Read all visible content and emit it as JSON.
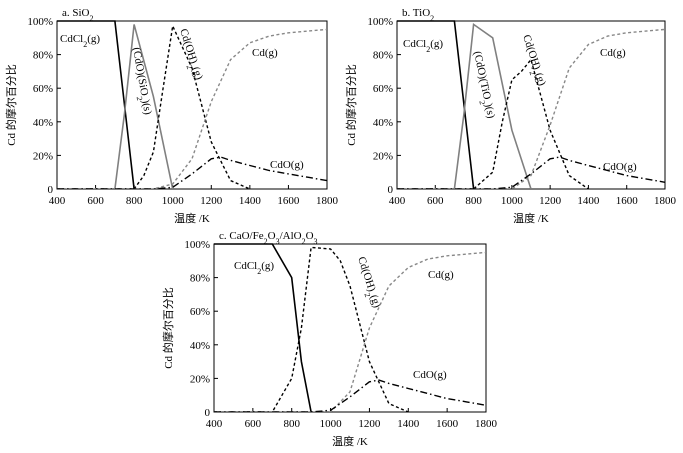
{
  "figure": {
    "background": "#ffffff"
  },
  "chart_data": [
    {
      "type": "line",
      "panel_label": "a. SiO₂",
      "xlabel": "温度 /K",
      "ylabel": "Cd 的摩尔百分比",
      "xlim": [
        400,
        1800
      ],
      "ylim": [
        0,
        100
      ],
      "xticks": [
        "400",
        "600",
        "800",
        "1000",
        "1200",
        "1400",
        "1600",
        "1800"
      ],
      "yticks": [
        "0",
        "20%",
        "40%",
        "60%",
        "80%",
        "100%"
      ],
      "series": [
        {
          "name": "CdCl₂(g)",
          "color": "#000000",
          "dash": "solid",
          "x": [
            400,
            600,
            700,
            750,
            800
          ],
          "y": [
            100,
            100,
            100,
            50,
            0
          ]
        },
        {
          "name": "(CdO)(SiO₂)(s)",
          "color": "#808080",
          "dash": "solid",
          "x": [
            400,
            700,
            750,
            800,
            900,
            1000
          ],
          "y": [
            0,
            0,
            45,
            98,
            55,
            0
          ]
        },
        {
          "name": "Cd(OH)₂(g)",
          "color": "#000000",
          "dash": "dotted",
          "x": [
            400,
            800,
            850,
            900,
            950,
            1000,
            1100,
            1200,
            1300,
            1400
          ],
          "y": [
            0,
            0,
            8,
            22,
            60,
            97,
            72,
            28,
            5,
            0
          ]
        },
        {
          "name": "Cd(g)",
          "color": "#888888",
          "dash": "dotted",
          "x": [
            400,
            900,
            1000,
            1100,
            1200,
            1300,
            1400,
            1500,
            1600,
            1700,
            1800
          ],
          "y": [
            0,
            0,
            3,
            18,
            52,
            77,
            87,
            91,
            93,
            94,
            95
          ]
        },
        {
          "name": "CdO(g)",
          "color": "#000000",
          "dash": "dashdot",
          "x": [
            400,
            900,
            1000,
            1100,
            1200,
            1250,
            1300,
            1400,
            1500,
            1600,
            1700,
            1800
          ],
          "y": [
            0,
            0,
            1,
            9,
            18,
            19,
            17,
            14,
            11,
            9,
            7,
            5
          ]
        }
      ]
    },
    {
      "type": "line",
      "panel_label": "b. TiO₂",
      "xlabel": "温度 /K",
      "ylabel": "Cd 的摩尔百分比",
      "xlim": [
        400,
        1800
      ],
      "ylim": [
        0,
        100
      ],
      "xticks": [
        "400",
        "600",
        "800",
        "1000",
        "1200",
        "1400",
        "1600",
        "1800"
      ],
      "yticks": [
        "0",
        "20%",
        "40%",
        "60%",
        "80%",
        "100%"
      ],
      "series": [
        {
          "name": "CdCl₂(g)",
          "color": "#000000",
          "dash": "solid",
          "x": [
            400,
            600,
            700,
            750,
            800
          ],
          "y": [
            100,
            100,
            100,
            50,
            0
          ]
        },
        {
          "name": "(CdO)(TiO₂)(s)",
          "color": "#808080",
          "dash": "solid",
          "x": [
            400,
            700,
            750,
            800,
            900,
            1000,
            1100
          ],
          "y": [
            0,
            0,
            45,
            98,
            90,
            35,
            0
          ]
        },
        {
          "name": "Cd(OH)₂(g)",
          "color": "#000000",
          "dash": "dotted",
          "x": [
            400,
            800,
            850,
            900,
            950,
            1000,
            1050,
            1100,
            1200,
            1300,
            1400
          ],
          "y": [
            0,
            0,
            5,
            10,
            40,
            65,
            70,
            77,
            35,
            8,
            0
          ]
        },
        {
          "name": "Cd(g)",
          "color": "#888888",
          "dash": "dotted",
          "x": [
            400,
            1000,
            1100,
            1200,
            1300,
            1400,
            1500,
            1600,
            1700,
            1800
          ],
          "y": [
            0,
            0,
            8,
            38,
            72,
            86,
            91,
            93,
            94,
            95
          ]
        },
        {
          "name": "CdO(g)",
          "color": "#000000",
          "dash": "dashdot",
          "x": [
            400,
            900,
            1000,
            1100,
            1200,
            1250,
            1300,
            1400,
            1500,
            1600,
            1700,
            1800
          ],
          "y": [
            0,
            0,
            1,
            9,
            18,
            19,
            17,
            14,
            11,
            8,
            6,
            4
          ]
        }
      ]
    },
    {
      "type": "line",
      "panel_label": "c. CaO/Fe₂O₃/AlO₂O₃",
      "xlabel": "温度 /K",
      "ylabel": "Cd 的摩尔百分比",
      "xlim": [
        400,
        1800
      ],
      "ylim": [
        0,
        100
      ],
      "xticks": [
        "400",
        "600",
        "800",
        "1000",
        "1200",
        "1400",
        "1600",
        "1800"
      ],
      "yticks": [
        "0",
        "20%",
        "40%",
        "60%",
        "80%",
        "100%"
      ],
      "series": [
        {
          "name": "CdCl₂(g)",
          "color": "#000000",
          "dash": "solid",
          "x": [
            400,
            600,
            700,
            800,
            850,
            900
          ],
          "y": [
            100,
            100,
            100,
            80,
            30,
            0
          ]
        },
        {
          "name": "Cd(OH)₂(g)",
          "color": "#000000",
          "dash": "dotted",
          "x": [
            400,
            700,
            800,
            850,
            900,
            1000,
            1050,
            1100,
            1200,
            1300,
            1400
          ],
          "y": [
            0,
            0,
            20,
            50,
            98,
            97,
            90,
            75,
            30,
            5,
            0
          ]
        },
        {
          "name": "Cd(g)",
          "color": "#888888",
          "dash": "dotted",
          "x": [
            400,
            1000,
            1100,
            1200,
            1300,
            1400,
            1500,
            1600,
            1700,
            1800
          ],
          "y": [
            0,
            0,
            12,
            50,
            75,
            86,
            91,
            93,
            94,
            95
          ]
        },
        {
          "name": "CdO(g)",
          "color": "#000000",
          "dash": "dashdot",
          "x": [
            400,
            900,
            1000,
            1100,
            1200,
            1250,
            1300,
            1400,
            1500,
            1600,
            1700,
            1800
          ],
          "y": [
            0,
            0,
            1,
            9,
            18,
            19,
            17,
            14,
            11,
            8,
            6,
            4
          ]
        }
      ]
    }
  ]
}
